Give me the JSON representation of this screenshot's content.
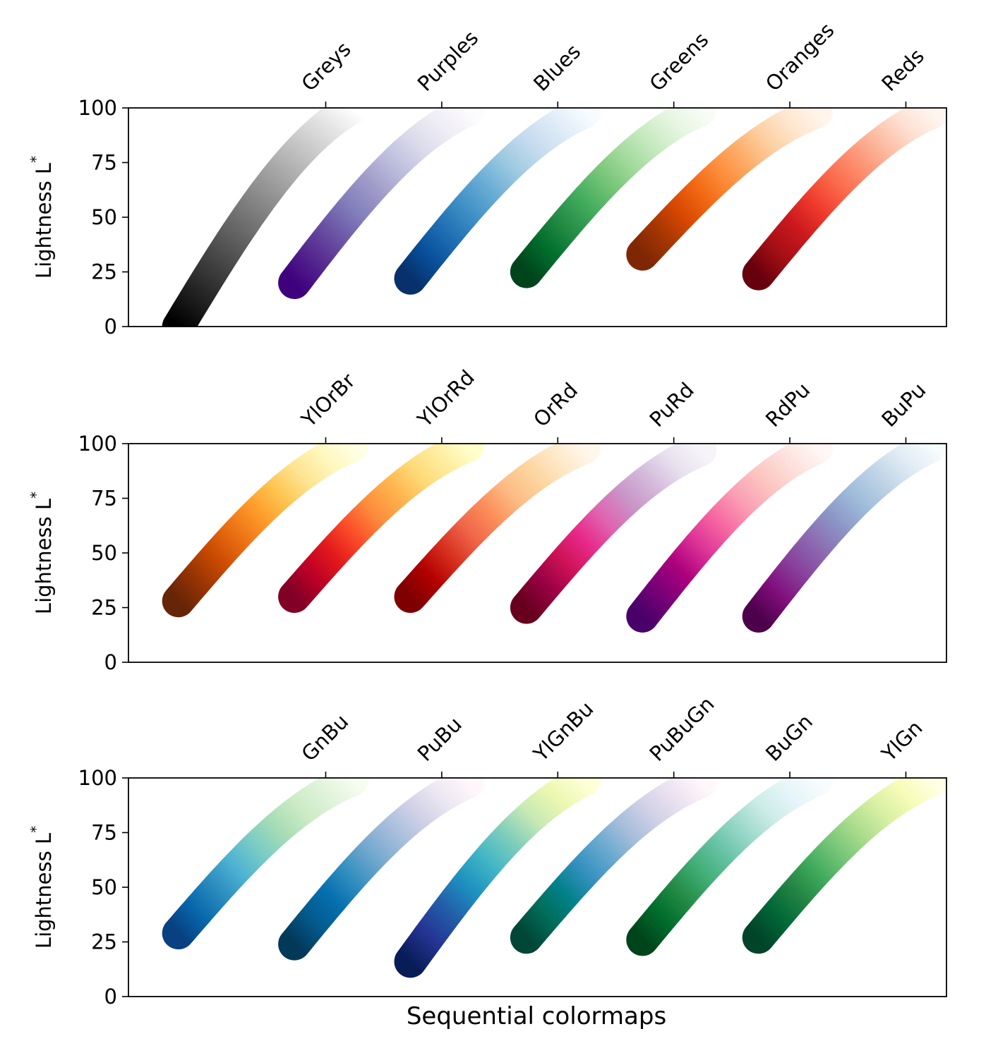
{
  "chart_data": [
    {
      "type": "scatter",
      "ylabel": "Lightness L*",
      "ylim": [
        0,
        100
      ],
      "yticks": [
        0,
        25,
        50,
        75,
        100
      ],
      "colormaps": [
        {
          "name": "Greys",
          "colors": [
            "#000000",
            "#ffffff"
          ],
          "x_start": 0.23,
          "lightness": [
            0,
            100
          ]
        },
        {
          "name": "Purples",
          "colors": [
            "#3f007d",
            "#54278f",
            "#6a51a3",
            "#807dba",
            "#9e9ac8",
            "#bcbddc",
            "#dadaeb",
            "#efedf5",
            "#fcfbfd"
          ],
          "x_start": 1.23,
          "lightness": [
            20,
            99
          ]
        },
        {
          "name": "Blues",
          "colors": [
            "#08306b",
            "#08519c",
            "#2171b5",
            "#4292c6",
            "#6baed6",
            "#9ecae1",
            "#c6dbef",
            "#deebf7",
            "#f7fbff"
          ],
          "x_start": 2.23,
          "lightness": [
            22,
            98
          ]
        },
        {
          "name": "Greens",
          "colors": [
            "#00441b",
            "#006d2c",
            "#238b45",
            "#41ab5d",
            "#74c476",
            "#a1d99b",
            "#c7e9c0",
            "#e5f5e0",
            "#f7fcf5"
          ],
          "x_start": 3.23,
          "lightness": [
            25,
            99
          ]
        },
        {
          "name": "Oranges",
          "colors": [
            "#7f2704",
            "#a63603",
            "#d94801",
            "#f16913",
            "#fd8d3c",
            "#fdae6b",
            "#fdd0a2",
            "#fee6ce",
            "#fff5eb"
          ],
          "x_start": 4.23,
          "lightness": [
            33,
            98
          ]
        },
        {
          "name": "Reds",
          "colors": [
            "#67000d",
            "#a50f15",
            "#cb181d",
            "#ef3b2c",
            "#fb6a4a",
            "#fc9272",
            "#fcbba1",
            "#fee0d2",
            "#fff5f0"
          ],
          "x_start": 5.23,
          "lightness": [
            24,
            98
          ]
        }
      ]
    },
    {
      "type": "scatter",
      "ylabel": "Lightness L*",
      "ylim": [
        0,
        100
      ],
      "yticks": [
        0,
        25,
        50,
        75,
        100
      ],
      "colormaps": [
        {
          "name": "YlOrBr",
          "colors": [
            "#662506",
            "#993404",
            "#cc4c02",
            "#ec7014",
            "#fe9929",
            "#fec44f",
            "#fee391",
            "#fff7bc",
            "#ffffe5"
          ],
          "x_start": 0.23,
          "lightness": [
            28,
            99
          ]
        },
        {
          "name": "YlOrRd",
          "colors": [
            "#800026",
            "#bd0026",
            "#e31a1c",
            "#fc4e2a",
            "#fd8d3c",
            "#feb24c",
            "#fed976",
            "#ffeda0",
            "#ffffcc"
          ],
          "x_start": 1.23,
          "lightness": [
            30,
            99
          ]
        },
        {
          "name": "OrRd",
          "colors": [
            "#7f0000",
            "#b30000",
            "#d7301f",
            "#ef6548",
            "#fc8d59",
            "#fdbb84",
            "#fdd49e",
            "#fee8c8",
            "#fff7ec"
          ],
          "x_start": 2.23,
          "lightness": [
            30,
            98
          ]
        },
        {
          "name": "PuRd",
          "colors": [
            "#67001f",
            "#980043",
            "#ce1256",
            "#e7298a",
            "#df65b0",
            "#c994c7",
            "#d4b9da",
            "#e7e1ef",
            "#f7f4f9"
          ],
          "x_start": 3.23,
          "lightness": [
            25,
            97
          ]
        },
        {
          "name": "RdPu",
          "colors": [
            "#49006a",
            "#7a0177",
            "#ae017e",
            "#dd3497",
            "#f768a1",
            "#fa9fb5",
            "#fcc5c0",
            "#fde0dd",
            "#fff7f3"
          ],
          "x_start": 4.23,
          "lightness": [
            21,
            98
          ]
        },
        {
          "name": "BuPu",
          "colors": [
            "#4d004b",
            "#810f7c",
            "#88419d",
            "#8c6bb1",
            "#8c96c6",
            "#9ebcda",
            "#bfd3e6",
            "#e0ecf4",
            "#f7fcfd"
          ],
          "x_start": 5.23,
          "lightness": [
            21,
            99
          ]
        }
      ]
    },
    {
      "type": "scatter",
      "ylabel": "Lightness L*",
      "xlabel": "Sequential colormaps",
      "ylim": [
        0,
        100
      ],
      "yticks": [
        0,
        25,
        50,
        75,
        100
      ],
      "colormaps": [
        {
          "name": "GnBu",
          "colors": [
            "#084081",
            "#0868ac",
            "#2b8cbe",
            "#4eb3d3",
            "#7bccc4",
            "#a8ddb5",
            "#ccebc5",
            "#e0f3db",
            "#f7fcf0"
          ],
          "x_start": 0.23,
          "lightness": [
            29,
            99
          ]
        },
        {
          "name": "PuBu",
          "colors": [
            "#023858",
            "#045a8d",
            "#0570b0",
            "#3690c0",
            "#74a9cf",
            "#a6bddb",
            "#d0d1e6",
            "#ece7f2",
            "#fff7fb"
          ],
          "x_start": 1.23,
          "lightness": [
            24,
            98
          ]
        },
        {
          "name": "YlGnBu",
          "colors": [
            "#081d58",
            "#253494",
            "#225ea8",
            "#1d91c0",
            "#41b6c4",
            "#7fcdbb",
            "#c7e9b4",
            "#edf8b1",
            "#ffffd9"
          ],
          "x_start": 2.23,
          "lightness": [
            16,
            99
          ]
        },
        {
          "name": "PuBuGn",
          "colors": [
            "#014636",
            "#016c59",
            "#02818a",
            "#3690c0",
            "#67a9cf",
            "#a6bddb",
            "#d0d1e6",
            "#ece2f0",
            "#fff7fb"
          ],
          "x_start": 3.23,
          "lightness": [
            27,
            98
          ]
        },
        {
          "name": "BuGn",
          "colors": [
            "#00441b",
            "#006d2c",
            "#238b45",
            "#41ae76",
            "#66c2a4",
            "#99d8c9",
            "#ccece6",
            "#e5f5f9",
            "#f7fcfd"
          ],
          "x_start": 4.23,
          "lightness": [
            26,
            99
          ]
        },
        {
          "name": "YlGn",
          "colors": [
            "#004529",
            "#006837",
            "#238443",
            "#41ab5d",
            "#78c679",
            "#addd8e",
            "#d9f0a3",
            "#f7fcb9",
            "#ffffe5"
          ],
          "x_start": 5.23,
          "lightness": [
            27,
            99
          ]
        }
      ]
    }
  ]
}
